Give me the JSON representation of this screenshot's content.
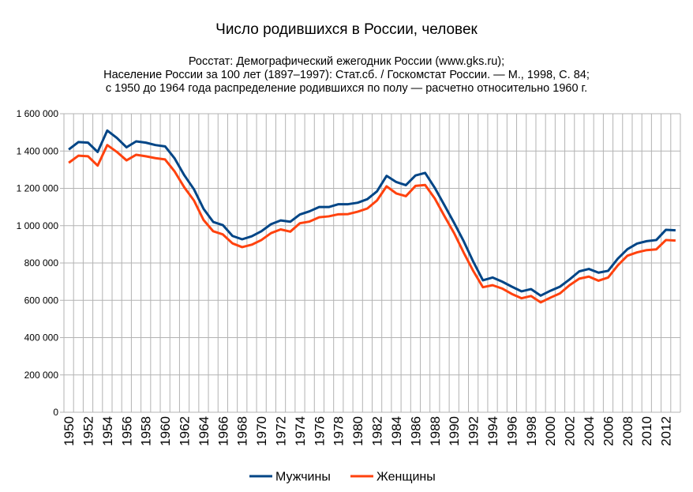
{
  "chart_data": {
    "type": "line",
    "title": "Число родившихся в России, человек",
    "subtitle_lines": [
      "Росстат: Демографический ежегодник России (www.gks.ru);",
      "Население России за  100 лет (1897–1997):  Стат.сб. / Госкомстат России. — М.,  1998, С. 84;",
      "с 1950 до 1964 года распределение родившихся по полу — расчетно относительно 1960 г."
    ],
    "xlabel": "",
    "ylabel": "",
    "ylim": [
      0,
      1600000
    ],
    "yticks": [
      0,
      200000,
      400000,
      600000,
      800000,
      1000000,
      1200000,
      1400000,
      1600000
    ],
    "ytick_labels": [
      "0",
      "200 000",
      "400 000",
      "600 000",
      "800 000",
      "1 000 000",
      "1 200 000",
      "1 400 000",
      "1 600 000"
    ],
    "x": [
      1950,
      1951,
      1952,
      1953,
      1954,
      1955,
      1956,
      1957,
      1958,
      1959,
      1960,
      1961,
      1962,
      1963,
      1964,
      1965,
      1966,
      1967,
      1968,
      1969,
      1970,
      1971,
      1972,
      1973,
      1974,
      1975,
      1976,
      1977,
      1978,
      1979,
      1980,
      1981,
      1982,
      1983,
      1984,
      1985,
      1986,
      1987,
      1988,
      1989,
      1990,
      1991,
      1992,
      1993,
      1994,
      1995,
      1996,
      1997,
      1998,
      1999,
      2000,
      2001,
      2002,
      2003,
      2004,
      2005,
      2006,
      2007,
      2008,
      2009,
      2010,
      2011,
      2012,
      2013
    ],
    "xtick_labels": [
      "1950",
      "1952",
      "1954",
      "1956",
      "1958",
      "1960",
      "1962",
      "1964",
      "1966",
      "1968",
      "1970",
      "1972",
      "1974",
      "1976",
      "1978",
      "1980",
      "1982",
      "1984",
      "1986",
      "1988",
      "1990",
      "1992",
      "1994",
      "1996",
      "1998",
      "2000",
      "2002",
      "2004",
      "2006",
      "2008",
      "2010",
      "2012"
    ],
    "grid": true,
    "legend_position": "bottom",
    "series": [
      {
        "name": "Мужчины",
        "color": "#004586",
        "values": [
          1408000,
          1448000,
          1445000,
          1395000,
          1510000,
          1470000,
          1420000,
          1452000,
          1445000,
          1432000,
          1425000,
          1360000,
          1270000,
          1195000,
          1090000,
          1020000,
          1003000,
          945000,
          927000,
          943000,
          970000,
          1008000,
          1028000,
          1021000,
          1060000,
          1077000,
          1100000,
          1100000,
          1115000,
          1115000,
          1123000,
          1142000,
          1184000,
          1267000,
          1234000,
          1217000,
          1269000,
          1283000,
          1203000,
          1110000,
          1016000,
          917000,
          807000,
          707000,
          722000,
          700000,
          673000,
          648000,
          660000,
          625000,
          651000,
          673000,
          712000,
          755000,
          768000,
          748000,
          758000,
          823000,
          874000,
          904000,
          917000,
          923000,
          978000,
          975000
        ]
      },
      {
        "name": "Женщины",
        "color": "#ff420e",
        "values": [
          1337000,
          1375000,
          1372000,
          1322000,
          1432000,
          1395000,
          1350000,
          1380000,
          1372000,
          1362000,
          1355000,
          1290000,
          1205000,
          1135000,
          1030000,
          970000,
          953000,
          905000,
          885000,
          898000,
          923000,
          960000,
          980000,
          968000,
          1013000,
          1022000,
          1045000,
          1050000,
          1061000,
          1062000,
          1075000,
          1092000,
          1135000,
          1211000,
          1173000,
          1158000,
          1213000,
          1218000,
          1146000,
          1052000,
          961000,
          856000,
          757000,
          670000,
          681000,
          663000,
          634000,
          611000,
          623000,
          589000,
          614000,
          637000,
          681000,
          716000,
          727000,
          705000,
          722000,
          787000,
          839000,
          857000,
          869000,
          873000,
          923000,
          920000
        ]
      }
    ]
  }
}
